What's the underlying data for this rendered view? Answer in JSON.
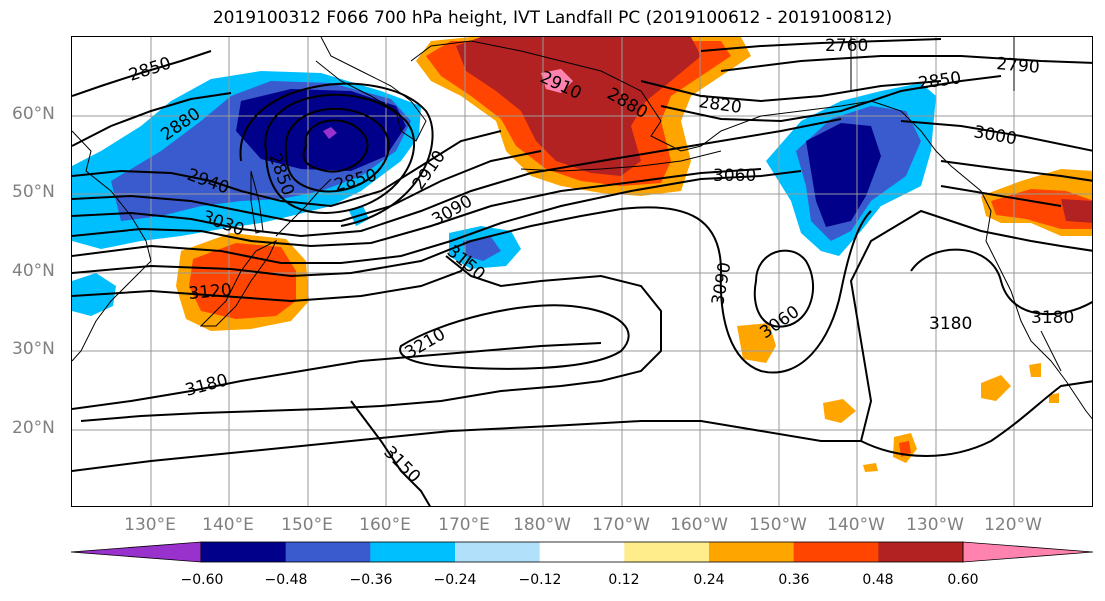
{
  "title": "2019100312 F066 700 hPa height, IVT Landfall PC (2019100612 - 2019100812)",
  "lat_labels": [
    "60°N",
    "50°N",
    "40°N",
    "30°N",
    "20°N"
  ],
  "lon_labels": [
    "130°E",
    "140°E",
    "150°E",
    "160°E",
    "170°E",
    "180°W",
    "170°W",
    "160°W",
    "150°W",
    "140°W",
    "130°W",
    "120°W"
  ],
  "contour_labels": [
    "2850",
    "2880",
    "2940",
    "2850",
    "2850",
    "3030",
    "3120",
    "2910",
    "3090",
    "3150",
    "2910",
    "2880",
    "2760",
    "2820",
    "2790",
    "2850",
    "3000",
    "3060",
    "3090",
    "3060",
    "3210",
    "3180",
    "3180",
    "3180",
    "3150"
  ],
  "colorbar": {
    "tick_labels": [
      "−0.60",
      "−0.48",
      "−0.36",
      "−0.24",
      "−0.12",
      "0.12",
      "0.24",
      "0.36",
      "0.48",
      "0.60"
    ],
    "colors": [
      "#9932cc",
      "#00008b",
      "#3a5bcd",
      "#00bfff",
      "#b0e0fa",
      "#ffffff",
      "#ffec8b",
      "#ffa500",
      "#ff4500",
      "#b22222",
      "#ff83ae"
    ]
  },
  "map_colors": {
    "neg_strong": "#00008b",
    "neg_mid": "#3a5bcd",
    "neg_weak": "#00bfff",
    "neg_min": "#9932cc",
    "pos_weak": "#ffa500",
    "pos_mid": "#ff4500",
    "pos_strong": "#b22222",
    "pos_max": "#ff83ae",
    "pos_min": "#ffec8b"
  }
}
